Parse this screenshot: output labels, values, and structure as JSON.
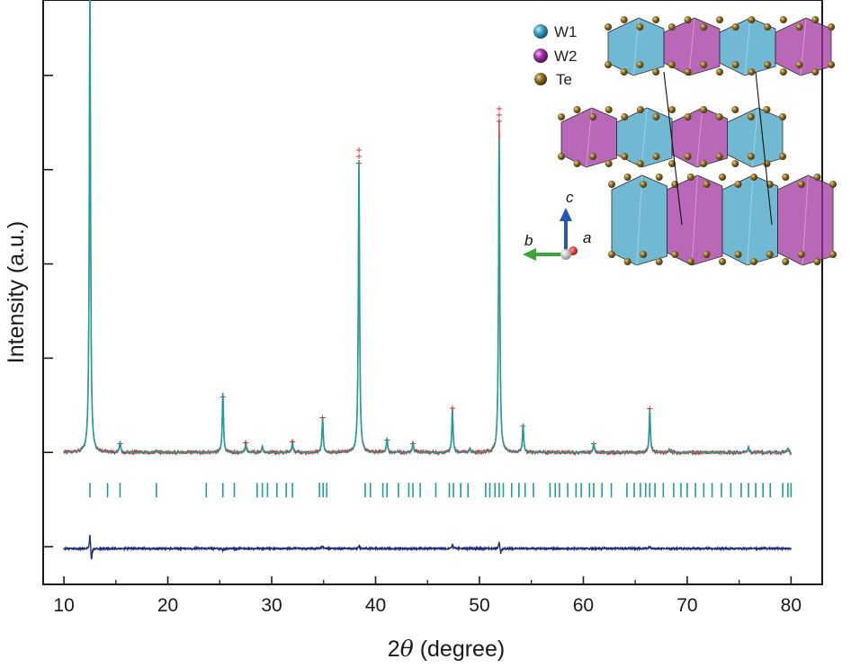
{
  "chart_data": {
    "type": "line",
    "title": "",
    "xlabel": "2θ (degree)",
    "ylabel": "Intensity (a.u.)",
    "xlim": [
      8,
      83
    ],
    "xticks": [
      10,
      20,
      30,
      40,
      50,
      60,
      70,
      80
    ],
    "ylim": [
      -0.35,
      1.2
    ],
    "y_tick_labels_shown": false,
    "grid": false,
    "baseline": 0.0,
    "series": [
      {
        "role": "observed",
        "color": "#d42424",
        "peaks": [
          {
            "x": 12.5,
            "y": 1.22
          },
          {
            "x": 15.4,
            "y": 0.025
          },
          {
            "x": 18.9,
            "y": 0.006
          },
          {
            "x": 25.3,
            "y": 0.15
          },
          {
            "x": 27.5,
            "y": 0.028
          },
          {
            "x": 29.1,
            "y": 0.015
          },
          {
            "x": 32.0,
            "y": 0.03
          },
          {
            "x": 34.9,
            "y": 0.095
          },
          {
            "x": 38.4,
            "y": 0.77
          },
          {
            "x": 41.1,
            "y": 0.035
          },
          {
            "x": 43.6,
            "y": 0.026
          },
          {
            "x": 47.4,
            "y": 0.12
          },
          {
            "x": 49.1,
            "y": 0.01
          },
          {
            "x": 51.9,
            "y": 0.88
          },
          {
            "x": 54.2,
            "y": 0.072
          },
          {
            "x": 61.0,
            "y": 0.025
          },
          {
            "x": 66.4,
            "y": 0.118
          },
          {
            "x": 68.3,
            "y": 0.008
          },
          {
            "x": 75.9,
            "y": 0.014
          },
          {
            "x": 79.7,
            "y": 0.01
          }
        ]
      },
      {
        "role": "calculated",
        "color": "#1e9f96",
        "peaks": [
          {
            "x": 12.5,
            "y": 1.24
          },
          {
            "x": 15.4,
            "y": 0.028
          },
          {
            "x": 18.9,
            "y": 0.006
          },
          {
            "x": 25.3,
            "y": 0.158
          },
          {
            "x": 27.5,
            "y": 0.02
          },
          {
            "x": 29.1,
            "y": 0.017
          },
          {
            "x": 32.0,
            "y": 0.025
          },
          {
            "x": 34.9,
            "y": 0.088
          },
          {
            "x": 38.4,
            "y": 0.775
          },
          {
            "x": 41.1,
            "y": 0.037
          },
          {
            "x": 43.6,
            "y": 0.024
          },
          {
            "x": 47.4,
            "y": 0.11
          },
          {
            "x": 49.1,
            "y": 0.01
          },
          {
            "x": 51.9,
            "y": 0.83
          },
          {
            "x": 54.2,
            "y": 0.075
          },
          {
            "x": 61.0,
            "y": 0.023
          },
          {
            "x": 66.4,
            "y": 0.11
          },
          {
            "x": 68.3,
            "y": 0.008
          },
          {
            "x": 75.9,
            "y": 0.015
          },
          {
            "x": 79.7,
            "y": 0.01
          }
        ]
      },
      {
        "role": "difference",
        "color": "#1f2f7a",
        "offset": -0.255,
        "features": [
          {
            "x": 12.5,
            "y": 0.04
          },
          {
            "x": 12.65,
            "y": -0.035
          },
          {
            "x": 25.3,
            "y": -0.006
          },
          {
            "x": 34.9,
            "y": 0.008
          },
          {
            "x": 38.4,
            "y": 0.007
          },
          {
            "x": 47.4,
            "y": 0.01
          },
          {
            "x": 51.9,
            "y": 0.02
          },
          {
            "x": 52.05,
            "y": -0.015
          },
          {
            "x": 66.4,
            "y": 0.006
          }
        ]
      }
    ],
    "bragg_reflections": {
      "color": "#1e9f96",
      "offset": -0.1,
      "positions": [
        12.5,
        14.2,
        15.4,
        18.9,
        23.7,
        25.3,
        26.4,
        28.6,
        29.1,
        29.6,
        30.5,
        31.4,
        32.0,
        34.6,
        34.95,
        35.3,
        39.0,
        39.5,
        40.7,
        41.1,
        42.2,
        43.2,
        43.6,
        44.3,
        45.8,
        47.1,
        47.5,
        48.2,
        48.9,
        50.6,
        51.0,
        51.5,
        51.9,
        52.3,
        53.1,
        53.8,
        54.4,
        55.2,
        56.8,
        57.3,
        57.7,
        58.5,
        59.3,
        59.8,
        60.6,
        61.0,
        61.8,
        62.7,
        64.2,
        64.9,
        65.5,
        66.0,
        66.4,
        66.9,
        67.7,
        68.7,
        69.4,
        70.0,
        70.8,
        71.6,
        72.4,
        73.3,
        74.2,
        75.2,
        75.9,
        76.6,
        77.3,
        78.0,
        79.2,
        79.7,
        80.0
      ]
    },
    "inset": {
      "legend": [
        {
          "label": "W1",
          "color": "#3a9ec2"
        },
        {
          "label": "W2",
          "color": "#9d2e9a"
        },
        {
          "label": "Te",
          "color": "#8a6a22"
        }
      ],
      "axes": {
        "c": "c",
        "b": "b",
        "a": "a"
      }
    }
  }
}
